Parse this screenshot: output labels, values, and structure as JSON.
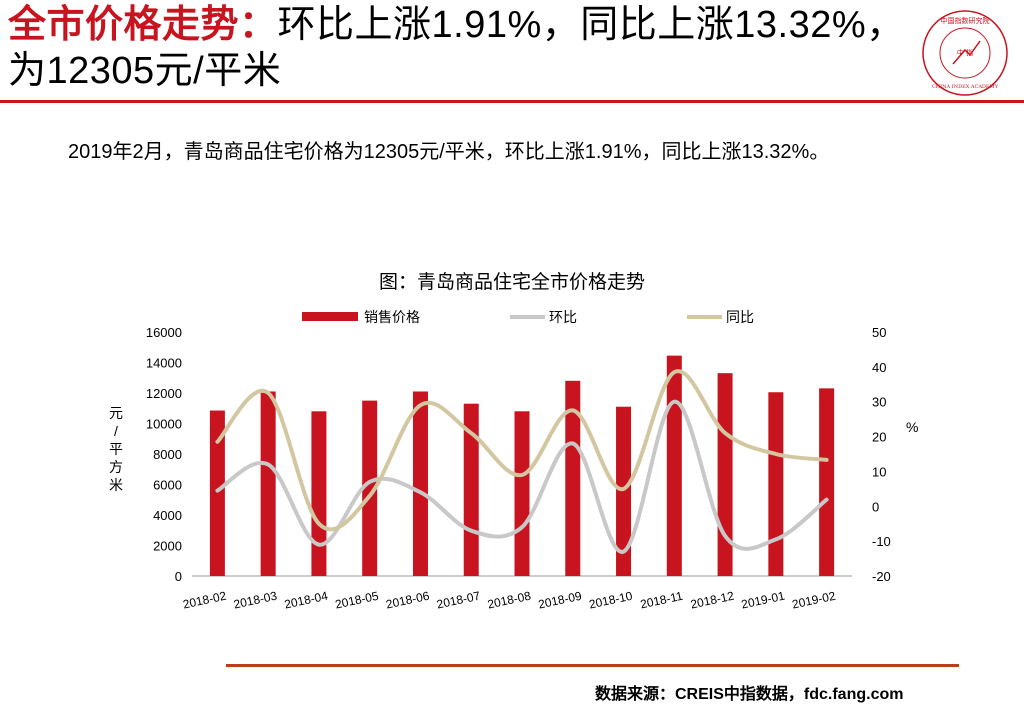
{
  "header": {
    "title_highlight": "全市价格走势：",
    "title_rest": "环比上涨1.91%，同比上涨13.32%，为12305元/平米",
    "logo_text_top": "中国指数研究院",
    "logo_text_bottom": "CHINA INDEX ACADEMY",
    "logo_center": "中 指"
  },
  "summary": "2019年2月，青岛商品住宅价格为12305元/平米，环比上涨1.91%，同比上涨13.32%。",
  "source": "数据来源：CREIS中指数据，fdc.fang.com",
  "colors": {
    "accent": "#c8141e",
    "bar": "#c8141e",
    "mom": "#c8c8c8",
    "yoy": "#d2c7a0"
  },
  "chart_data": {
    "type": "bar",
    "title": "图：青岛商品住宅全市价格走势",
    "categories": [
      "2018-02",
      "2018-03",
      "2018-04",
      "2018-05",
      "2018-06",
      "2018-07",
      "2018-08",
      "2018-09",
      "2018-10",
      "2018-11",
      "2018-12",
      "2019-01",
      "2019-02"
    ],
    "series": [
      {
        "name": "销售价格",
        "type": "bar",
        "axis": "left",
        "values": [
          10850,
          12100,
          10800,
          11500,
          12100,
          11300,
          10800,
          12800,
          11100,
          14450,
          13300,
          12050,
          12305
        ]
      },
      {
        "name": "环比",
        "type": "line",
        "axis": "right",
        "values": [
          4.5,
          12,
          -11,
          7,
          4,
          -7,
          -6,
          18,
          -13,
          30,
          -8.5,
          -9.5,
          1.91
        ]
      },
      {
        "name": "同比",
        "type": "line",
        "axis": "right",
        "values": [
          18.5,
          32.5,
          -5,
          3,
          29,
          21,
          9,
          27.5,
          5,
          38.5,
          21,
          15,
          13.32
        ]
      }
    ],
    "left_axis": {
      "label": "元/平方米",
      "min": 0,
      "max": 16000,
      "ticks": [
        0,
        2000,
        4000,
        6000,
        8000,
        10000,
        12000,
        14000,
        16000
      ]
    },
    "right_axis": {
      "label": "%",
      "min": -20,
      "max": 50,
      "ticks": [
        -20,
        -10,
        0,
        10,
        20,
        30,
        40,
        50
      ]
    },
    "legend_position": "top",
    "grid": false
  }
}
